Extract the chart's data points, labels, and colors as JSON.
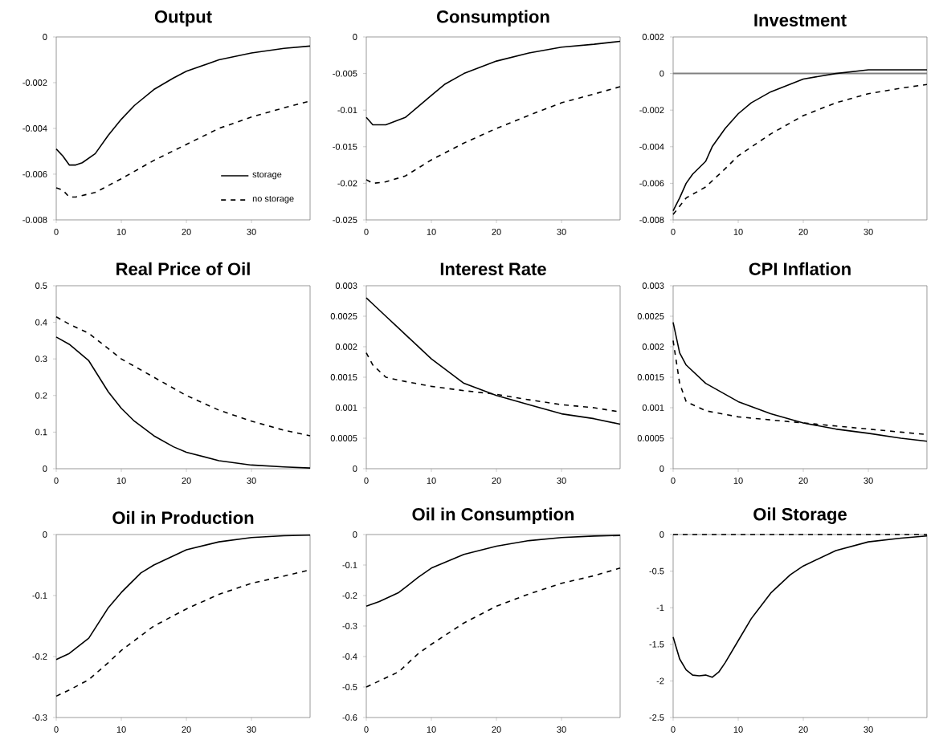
{
  "chart_data": [
    {
      "type": "line",
      "title": "Output",
      "xlim": [
        0,
        39
      ],
      "xticks": [
        0,
        10,
        20,
        30
      ],
      "ylim": [
        -0.008,
        0
      ],
      "yticks": [
        -0.008,
        -0.006,
        -0.004,
        -0.002,
        0
      ],
      "legend": "bottom right",
      "series": [
        {
          "name": "storage",
          "color": "#000000",
          "line_style": "solid",
          "x": [
            0,
            1,
            2,
            3,
            4,
            6,
            8,
            10,
            12,
            15,
            18,
            20,
            25,
            30,
            35,
            39
          ],
          "values": [
            -0.0049,
            -0.0052,
            -0.0056,
            -0.0056,
            -0.0055,
            -0.0051,
            -0.0043,
            -0.0036,
            -0.003,
            -0.0023,
            -0.0018,
            -0.0015,
            -0.001,
            -0.0007,
            -0.0005,
            -0.0004
          ]
        },
        {
          "name": "no storage",
          "color": "#000000",
          "line_style": "dashed",
          "x": [
            0,
            1,
            2,
            3,
            6,
            10,
            15,
            20,
            25,
            30,
            35,
            39
          ],
          "values": [
            -0.0066,
            -0.0067,
            -0.007,
            -0.007,
            -0.0068,
            -0.0062,
            -0.0054,
            -0.0047,
            -0.004,
            -0.0035,
            -0.0031,
            -0.0028
          ]
        }
      ]
    },
    {
      "type": "line",
      "title": "Consumption",
      "xlim": [
        0,
        39
      ],
      "xticks": [
        0,
        10,
        20,
        30
      ],
      "ylim": [
        -0.025,
        0
      ],
      "yticks": [
        -0.025,
        -0.02,
        -0.015,
        -0.01,
        -0.005,
        0
      ],
      "series": [
        {
          "color": "#000000",
          "line_style": "solid",
          "x": [
            0,
            1,
            2,
            3,
            6,
            8,
            10,
            12,
            15,
            20,
            25,
            30,
            35,
            39
          ],
          "values": [
            -0.011,
            -0.012,
            -0.012,
            -0.012,
            -0.011,
            -0.0095,
            -0.008,
            -0.0065,
            -0.005,
            -0.0033,
            -0.0022,
            -0.0014,
            -0.001,
            -0.0006
          ]
        },
        {
          "color": "#000000",
          "line_style": "dashed",
          "x": [
            0,
            1,
            3,
            6,
            10,
            15,
            20,
            25,
            30,
            35,
            39
          ],
          "values": [
            -0.0195,
            -0.02,
            -0.0198,
            -0.019,
            -0.0168,
            -0.0145,
            -0.0125,
            -0.0107,
            -0.009,
            -0.0078,
            -0.0068
          ]
        }
      ]
    },
    {
      "type": "line",
      "title": "Investment",
      "xlim": [
        0,
        39
      ],
      "xticks": [
        0,
        10,
        20,
        30
      ],
      "ylim": [
        -0.008,
        0.002
      ],
      "yticks": [
        -0.008,
        -0.006,
        -0.004,
        -0.002,
        0,
        0.002
      ],
      "ref_lines": [
        {
          "axis": "y",
          "value": 0,
          "color": "#808080"
        }
      ],
      "series": [
        {
          "color": "#000000",
          "line_style": "solid",
          "x": [
            0,
            1,
            2,
            3,
            5,
            6,
            8,
            10,
            12,
            15,
            20,
            25,
            30,
            35,
            39
          ],
          "values": [
            -0.0075,
            -0.0068,
            -0.006,
            -0.0055,
            -0.0048,
            -0.004,
            -0.003,
            -0.0022,
            -0.0016,
            -0.001,
            -0.0003,
            0,
            0.0002,
            0.0002,
            0.0002
          ]
        },
        {
          "color": "#000000",
          "line_style": "dashed",
          "x": [
            0,
            2,
            5,
            8,
            10,
            15,
            20,
            25,
            30,
            35,
            39
          ],
          "values": [
            -0.0077,
            -0.0068,
            -0.0062,
            -0.0052,
            -0.0045,
            -0.0033,
            -0.0023,
            -0.0016,
            -0.0011,
            -0.0008,
            -0.0006
          ]
        }
      ]
    },
    {
      "type": "line",
      "title": "Real Price of Oil",
      "xlim": [
        0,
        39
      ],
      "xticks": [
        0,
        10,
        20,
        30
      ],
      "ylim": [
        0,
        0.5
      ],
      "yticks": [
        0,
        0.1,
        0.2,
        0.3,
        0.4,
        0.5
      ],
      "series": [
        {
          "color": "#000000",
          "line_style": "solid",
          "x": [
            0,
            2,
            5,
            8,
            10,
            12,
            15,
            18,
            20,
            25,
            30,
            35,
            39
          ],
          "values": [
            0.36,
            0.34,
            0.295,
            0.21,
            0.165,
            0.13,
            0.09,
            0.06,
            0.045,
            0.022,
            0.01,
            0.005,
            0.002
          ]
        },
        {
          "color": "#000000",
          "line_style": "dashed",
          "x": [
            0,
            2,
            5,
            10,
            15,
            20,
            25,
            30,
            35,
            39
          ],
          "values": [
            0.415,
            0.395,
            0.37,
            0.3,
            0.25,
            0.2,
            0.16,
            0.13,
            0.105,
            0.09
          ]
        }
      ]
    },
    {
      "type": "line",
      "title": "Interest Rate",
      "xlim": [
        0,
        39
      ],
      "xticks": [
        0,
        10,
        20,
        30
      ],
      "ylim": [
        0,
        0.003
      ],
      "yticks": [
        0,
        0.0005,
        0.001,
        0.0015,
        0.002,
        0.0025,
        0.003
      ],
      "series": [
        {
          "color": "#000000",
          "line_style": "solid",
          "x": [
            0,
            1,
            3,
            5,
            10,
            15,
            20,
            25,
            30,
            35,
            39
          ],
          "values": [
            0.0028,
            0.0027,
            0.0025,
            0.0023,
            0.0018,
            0.0014,
            0.0012,
            0.00105,
            0.0009,
            0.00082,
            0.00073
          ]
        },
        {
          "color": "#000000",
          "line_style": "dashed",
          "x": [
            0,
            1,
            3,
            5,
            10,
            15,
            20,
            25,
            30,
            35,
            39
          ],
          "values": [
            0.0019,
            0.0017,
            0.0015,
            0.00145,
            0.00135,
            0.00128,
            0.00122,
            0.00113,
            0.00105,
            0.001,
            0.00093
          ]
        }
      ]
    },
    {
      "type": "line",
      "title": "CPI Inflation",
      "xlim": [
        0,
        39
      ],
      "xticks": [
        0,
        10,
        20,
        30
      ],
      "ylim": [
        0,
        0.003
      ],
      "yticks": [
        0,
        0.0005,
        0.001,
        0.0015,
        0.002,
        0.0025,
        0.003
      ],
      "series": [
        {
          "color": "#000000",
          "line_style": "solid",
          "x": [
            0,
            1,
            2,
            5,
            10,
            15,
            20,
            25,
            30,
            35,
            39
          ],
          "values": [
            0.0024,
            0.0019,
            0.0017,
            0.0014,
            0.0011,
            0.0009,
            0.00075,
            0.00065,
            0.00058,
            0.0005,
            0.00045
          ]
        },
        {
          "color": "#000000",
          "line_style": "dashed",
          "x": [
            0,
            1,
            2,
            5,
            10,
            15,
            20,
            25,
            30,
            35,
            39
          ],
          "values": [
            0.0021,
            0.0014,
            0.0011,
            0.00095,
            0.00085,
            0.0008,
            0.00075,
            0.0007,
            0.00065,
            0.0006,
            0.00056
          ]
        }
      ]
    },
    {
      "type": "line",
      "title": "Oil in Production",
      "xlim": [
        0,
        39
      ],
      "xticks": [
        0,
        10,
        20,
        30
      ],
      "ylim": [
        -0.3,
        0
      ],
      "yticks": [
        -0.3,
        -0.2,
        -0.1,
        0
      ],
      "series": [
        {
          "color": "#000000",
          "line_style": "solid",
          "x": [
            0,
            2,
            5,
            8,
            10,
            13,
            15,
            20,
            25,
            30,
            35,
            39
          ],
          "values": [
            -0.205,
            -0.195,
            -0.17,
            -0.12,
            -0.095,
            -0.063,
            -0.05,
            -0.025,
            -0.012,
            -0.005,
            -0.002,
            -0.001
          ]
        },
        {
          "color": "#000000",
          "line_style": "dashed",
          "x": [
            0,
            2,
            5,
            8,
            10,
            15,
            20,
            25,
            30,
            35,
            39
          ],
          "values": [
            -0.265,
            -0.255,
            -0.238,
            -0.21,
            -0.19,
            -0.15,
            -0.122,
            -0.098,
            -0.08,
            -0.068,
            -0.058
          ]
        }
      ]
    },
    {
      "type": "line",
      "title": "Oil in Consumption",
      "xlim": [
        0,
        39
      ],
      "xticks": [
        0,
        10,
        20,
        30
      ],
      "ylim": [
        -0.6,
        0
      ],
      "yticks": [
        -0.6,
        -0.5,
        -0.4,
        -0.3,
        -0.2,
        -0.1,
        0
      ],
      "series": [
        {
          "color": "#000000",
          "line_style": "solid",
          "x": [
            0,
            2,
            5,
            8,
            10,
            15,
            20,
            25,
            30,
            35,
            39
          ],
          "values": [
            -0.235,
            -0.22,
            -0.19,
            -0.14,
            -0.11,
            -0.065,
            -0.038,
            -0.02,
            -0.01,
            -0.005,
            -0.003
          ]
        },
        {
          "color": "#000000",
          "line_style": "dashed",
          "x": [
            0,
            2,
            5,
            8,
            10,
            15,
            20,
            25,
            30,
            35,
            39
          ],
          "values": [
            -0.5,
            -0.48,
            -0.45,
            -0.39,
            -0.36,
            -0.29,
            -0.235,
            -0.195,
            -0.16,
            -0.135,
            -0.11
          ]
        }
      ]
    },
    {
      "type": "line",
      "title": "Oil Storage",
      "xlim": [
        0,
        39
      ],
      "xticks": [
        0,
        10,
        20,
        30
      ],
      "ylim": [
        -2.5,
        0
      ],
      "yticks": [
        -2.5,
        -2,
        -1.5,
        -1,
        -0.5,
        0
      ],
      "series": [
        {
          "color": "#000000",
          "line_style": "solid",
          "x": [
            0,
            1,
            2,
            3,
            4,
            5,
            6,
            7,
            8,
            10,
            12,
            15,
            18,
            20,
            25,
            30,
            35,
            39
          ],
          "values": [
            -1.4,
            -1.7,
            -1.85,
            -1.92,
            -1.93,
            -1.92,
            -1.95,
            -1.88,
            -1.75,
            -1.45,
            -1.15,
            -0.8,
            -0.55,
            -0.43,
            -0.22,
            -0.1,
            -0.05,
            -0.02
          ]
        },
        {
          "color": "#000000",
          "line_style": "dashed",
          "x": [
            0,
            39
          ],
          "values": [
            0,
            0
          ]
        }
      ]
    }
  ]
}
